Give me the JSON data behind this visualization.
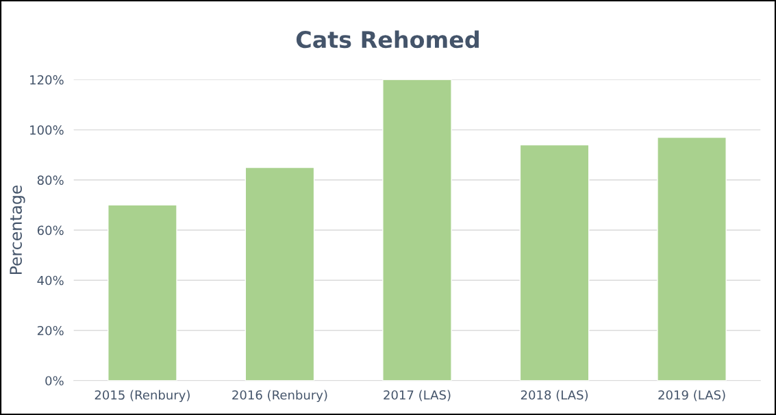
{
  "chart_data": {
    "type": "bar",
    "title": "Cats Rehomed",
    "ylabel": "Percentage",
    "categories": [
      "2015 (Renbury)",
      "2016 (Renbury)",
      "2017 (LAS)",
      "2018 (LAS)",
      "2019 (LAS)"
    ],
    "values": [
      70,
      85,
      120,
      94,
      97
    ],
    "color": "#a9d18e",
    "ylim": [
      0,
      120
    ],
    "yticks": [
      {
        "value": 0,
        "label": "0%"
      },
      {
        "value": 20,
        "label": "20%"
      },
      {
        "value": 40,
        "label": "40%"
      },
      {
        "value": 60,
        "label": "60%"
      },
      {
        "value": 80,
        "label": "80%"
      },
      {
        "value": 100,
        "label": "100%"
      },
      {
        "value": 120,
        "label": "120%"
      }
    ],
    "grid": "y"
  }
}
